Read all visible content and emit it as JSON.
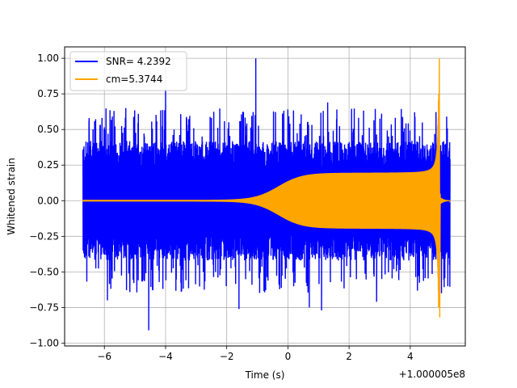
{
  "chart_data": {
    "type": "line",
    "title": "",
    "xlabel": "Time (s)",
    "ylabel": "Whitened strain",
    "offset_label": "+1.000005e8",
    "xlim": [
      -7.3,
      5.8
    ],
    "ylim": [
      -1.02,
      1.08
    ],
    "xticks": [
      -6,
      -4,
      -2,
      0,
      2,
      4
    ],
    "xtick_labels": [
      "−6",
      "−4",
      "−2",
      "0",
      "2",
      "4"
    ],
    "yticks": [
      -1.0,
      -0.75,
      -0.5,
      -0.25,
      0.0,
      0.25,
      0.5,
      0.75,
      1.0
    ],
    "ytick_labels": [
      "−1.00",
      "−0.75",
      "−0.50",
      "−0.25",
      "0.00",
      "0.25",
      "0.50",
      "0.75",
      "1.00"
    ],
    "grid": true,
    "legend_position": "upper-left",
    "series": [
      {
        "name": "SNR= 4.2392",
        "color": "#0000ff",
        "description_type": "noise-band",
        "x_range": [
          -6.7,
          5.3
        ],
        "typical_envelope": 0.42,
        "spikes": [
          {
            "x": -6.5,
            "y": 0.58
          },
          {
            "x": -5.3,
            "y": 0.65
          },
          {
            "x": -4.0,
            "y": 0.78
          },
          {
            "x": -1.05,
            "y": 1.0
          },
          {
            "x": 1.3,
            "y": 0.69
          },
          {
            "x": 1.6,
            "y": 0.64
          },
          {
            "x": -4.55,
            "y": -0.91
          },
          {
            "x": -5.9,
            "y": -0.7
          },
          {
            "x": -1.6,
            "y": -0.76
          },
          {
            "x": 0.7,
            "y": -0.75
          },
          {
            "x": 2.9,
            "y": -0.71
          },
          {
            "x": 1.1,
            "y": -0.77
          }
        ]
      },
      {
        "name": "cm=5.3744",
        "color": "#ffa500",
        "description_type": "chirp",
        "x_range": [
          -6.7,
          5.3
        ],
        "plateau_amplitude": 0.19,
        "merger_time": 4.95,
        "peak_positive": 1.0,
        "peak_negative": -0.82
      }
    ]
  }
}
